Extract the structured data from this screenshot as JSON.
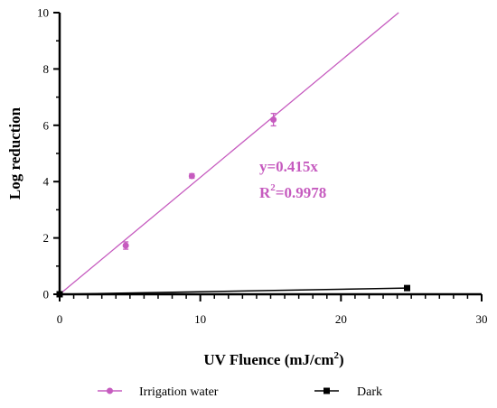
{
  "chart_data": {
    "type": "scatter",
    "xlabel": "UV Fluence (mJ/cm",
    "xlabel_sup": "2",
    "xlabel_end": ")",
    "ylabel": "Log reduction",
    "xlim": [
      0,
      30
    ],
    "ylim": [
      0,
      10
    ],
    "x_ticks": [
      0,
      10,
      20,
      30
    ],
    "y_ticks": [
      0,
      2,
      4,
      6,
      8,
      10
    ],
    "grid": false,
    "legend_position": "bottom",
    "series": [
      {
        "name": "Irrigation water",
        "color": "#c65bbf",
        "marker": "circle",
        "points": [
          {
            "x": 0,
            "y": 0,
            "err": 0
          },
          {
            "x": 4.7,
            "y": 1.73,
            "err": 0.13
          },
          {
            "x": 9.4,
            "y": 4.2,
            "err": 0.08
          },
          {
            "x": 15.2,
            "y": 6.2,
            "err": 0.22
          }
        ],
        "fit": {
          "slope": 0.415,
          "x_range": [
            0,
            24.1
          ]
        }
      },
      {
        "name": "Dark",
        "color": "#000000",
        "marker": "square",
        "points": [
          {
            "x": 0,
            "y": 0,
            "err": 0
          },
          {
            "x": 24.7,
            "y": 0.22,
            "err": 0
          }
        ]
      }
    ],
    "annotations": [
      {
        "text": "y=0.415x",
        "color": "#c65bbf"
      },
      {
        "text_pre": "R",
        "text_sup": "2",
        "text_post": "=0.9978",
        "color": "#c65bbf"
      }
    ]
  }
}
